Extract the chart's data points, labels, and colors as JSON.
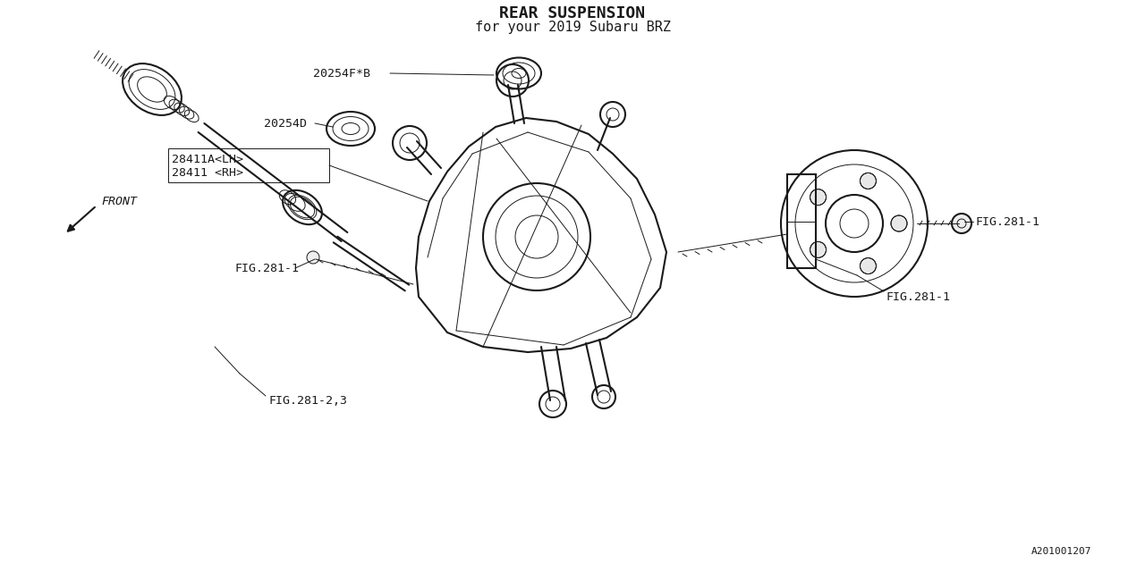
{
  "bg": "#ffffff",
  "lc": "#1a1a1a",
  "title": "REAR SUSPENSION",
  "subtitle": "for your 2019 Subaru BRZ",
  "diagram_id": "A201001207",
  "front_label": "FRONT",
  "label_fig281_23": "FIG.281-2,3",
  "label_fig281_1a": "FIG.281-1",
  "label_fig281_1b": "FIG.281-1",
  "label_fig281_1c": "FIG.281-1",
  "label_28411rh": "28411 <RH>",
  "label_28411alh": "28411A<LH>",
  "label_20254d": "20254D",
  "label_20254fb": "20254F*B",
  "lw": 1.0,
  "lw2": 1.5,
  "lw3": 0.7,
  "fs": 9.5
}
